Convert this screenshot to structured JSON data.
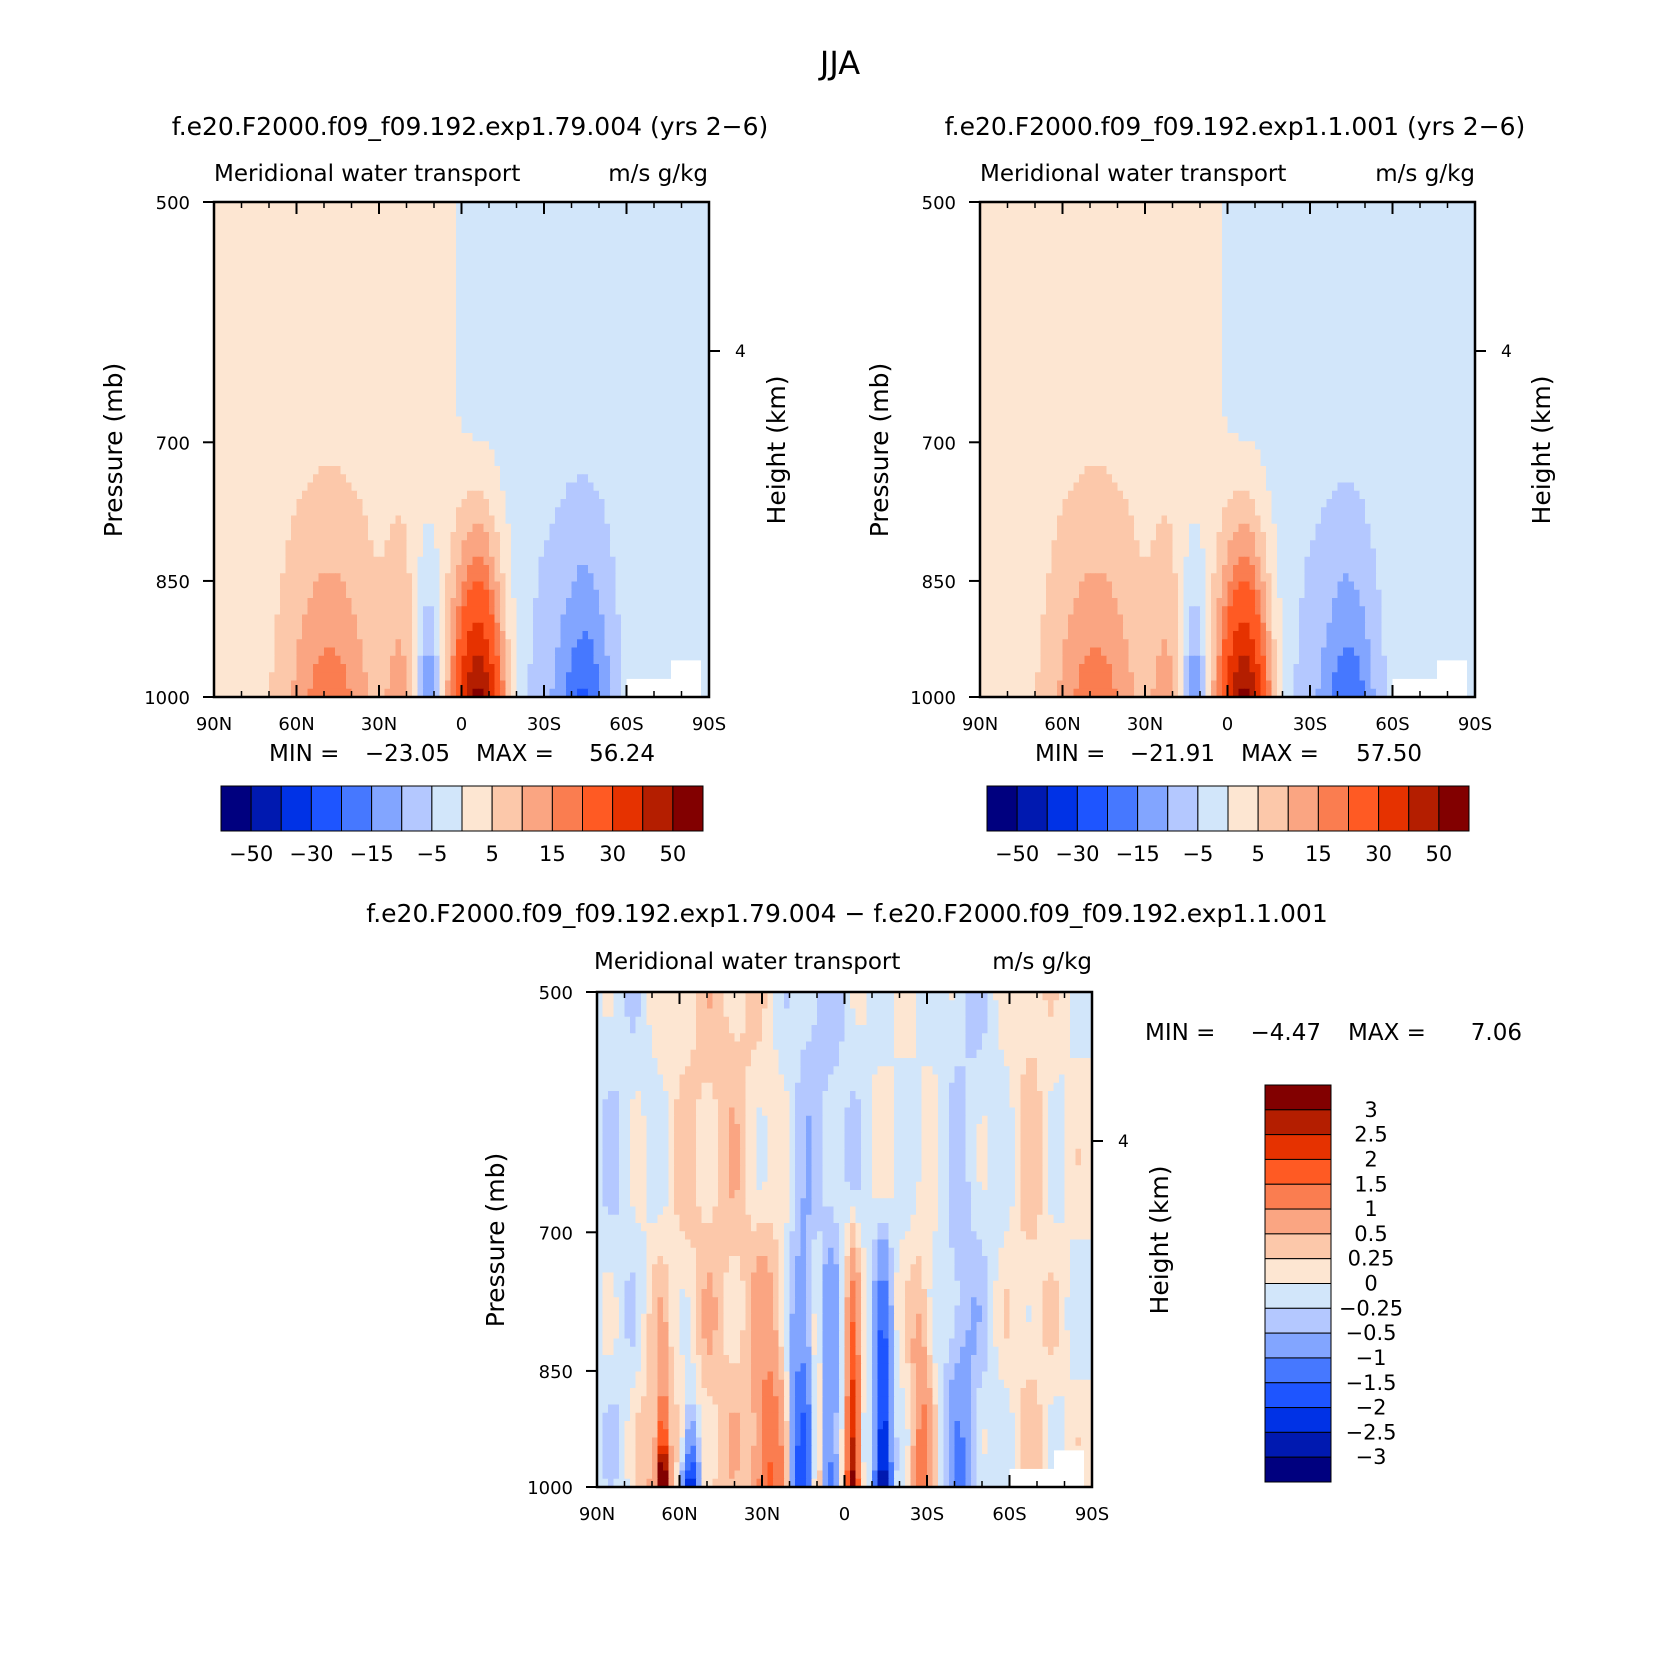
{
  "figure": {
    "title": "JJA"
  },
  "colors": {
    "abs_scale": [
      "#00007f",
      "#0019b0",
      "#0032e6",
      "#1e55ff",
      "#4678ff",
      "#82a5ff",
      "#b4c8ff",
      "#d2e6fa",
      "#fde6d2",
      "#fcc8aa",
      "#faa582",
      "#fa7d50",
      "#ff5a23",
      "#e63200",
      "#b41e00",
      "#820000"
    ],
    "diff_scale": [
      "#00007f",
      "#0019b0",
      "#0032e6",
      "#1e55ff",
      "#4678ff",
      "#82a5ff",
      "#b4c8ff",
      "#d2e6fa",
      "#fde6d2",
      "#fcc8aa",
      "#faa582",
      "#fa7d50",
      "#ff5a23",
      "#e63200",
      "#b41e00",
      "#820000"
    ],
    "missing": "#ffffff"
  },
  "chart_data": [
    {
      "type": "heatmap",
      "name": "top-left",
      "case_title": "f.e20.F2000.f09_f09.192.exp1.79.004 (yrs 2−6)",
      "left_label": "Meridional water transport",
      "right_label": "m/s g/kg",
      "ylabel": "Pressure (mb)",
      "ylabel_right": "Height (km)",
      "xticks": [
        "90N",
        "60N",
        "30N",
        "0",
        "30S",
        "60S",
        "90S"
      ],
      "yticks": [
        "500",
        "700",
        "850",
        "1000"
      ],
      "ytick_values": [
        500,
        700,
        850,
        1000
      ],
      "right_ticks": [
        "4"
      ],
      "xlim": [
        90,
        -90
      ],
      "ylim": [
        1000,
        500
      ],
      "stats": {
        "min_label": "MIN =",
        "min_value": "−23.05",
        "max_label": "MAX =",
        "max_value": "56.24"
      },
      "colorbar_labels": [
        "−50",
        "−30",
        "−15",
        "−5",
        "5",
        "15",
        "30",
        "50"
      ],
      "levels": [
        -50,
        -40,
        -30,
        -20,
        -15,
        -10,
        -5,
        0,
        5,
        10,
        15,
        20,
        30,
        40,
        50
      ],
      "approx_features": {
        "max_location": {
          "lat": -8,
          "pressure": 1000,
          "value": 56.24
        },
        "min_location": {
          "lat": -45,
          "pressure": 1000,
          "value": -23.05
        }
      }
    },
    {
      "type": "heatmap",
      "name": "top-right",
      "case_title": "f.e20.F2000.f09_f09.192.exp1.1.001 (yrs 2−6)",
      "left_label": "Meridional water transport",
      "right_label": "m/s g/kg",
      "ylabel": "Pressure (mb)",
      "ylabel_right": "Height (km)",
      "xticks": [
        "90N",
        "60N",
        "30N",
        "0",
        "30S",
        "60S",
        "90S"
      ],
      "yticks": [
        "500",
        "700",
        "850",
        "1000"
      ],
      "ytick_values": [
        500,
        700,
        850,
        1000
      ],
      "right_ticks": [
        "4"
      ],
      "xlim": [
        90,
        -90
      ],
      "ylim": [
        1000,
        500
      ],
      "stats": {
        "min_label": "MIN =",
        "min_value": "−21.91",
        "max_label": "MAX =",
        "max_value": "57.50"
      },
      "colorbar_labels": [
        "−50",
        "−30",
        "−15",
        "−5",
        "5",
        "15",
        "30",
        "50"
      ],
      "levels": [
        -50,
        -40,
        -30,
        -20,
        -15,
        -10,
        -5,
        0,
        5,
        10,
        15,
        20,
        30,
        40,
        50
      ],
      "approx_features": {
        "max_location": {
          "lat": -8,
          "pressure": 1000,
          "value": 57.5
        },
        "min_location": {
          "lat": -42,
          "pressure": 990,
          "value": -21.91
        }
      }
    },
    {
      "type": "heatmap",
      "name": "bottom-diff",
      "case_title": "f.e20.F2000.f09_f09.192.exp1.79.004 − f.e20.F2000.f09_f09.192.exp1.1.001",
      "left_label": "Meridional water transport",
      "right_label": "m/s g/kg",
      "ylabel": "Pressure (mb)",
      "ylabel_right": "Height (km)",
      "xticks": [
        "90N",
        "60N",
        "30N",
        "0",
        "30S",
        "60S",
        "90S"
      ],
      "yticks": [
        "500",
        "700",
        "850",
        "1000"
      ],
      "ytick_values": [
        500,
        700,
        850,
        1000
      ],
      "right_ticks": [
        "4"
      ],
      "xlim": [
        90,
        -90
      ],
      "ylim": [
        1000,
        500
      ],
      "stats": {
        "min_label": "MIN =",
        "min_value": "−4.47",
        "max_label": "MAX =",
        "max_value": "7.06"
      },
      "colorbar_labels": [
        "3",
        "2.5",
        "2",
        "1.5",
        "1",
        "0.5",
        "0.25",
        "0",
        "−0.25",
        "−0.5",
        "−1",
        "−1.5",
        "−2",
        "−2.5",
        "−3"
      ],
      "levels": [
        -3,
        -2.5,
        -2,
        -1.5,
        -1,
        -0.5,
        -0.25,
        0,
        0.25,
        0.5,
        1,
        1.5,
        2,
        2.5,
        3
      ],
      "approx_features": {
        "max_location": {
          "lat": 66,
          "pressure": 1000,
          "value": 7.06
        },
        "min_location": {
          "lat": 10,
          "pressure": 1000,
          "value": -4.47
        }
      }
    }
  ]
}
